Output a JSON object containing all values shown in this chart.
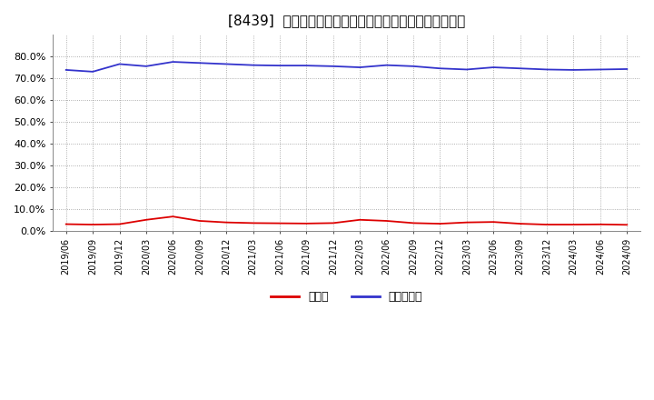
{
  "title": "[8439]  現預金、有利子負債の総資産に対する比率の推移",
  "x_labels": [
    "2019/06",
    "2019/09",
    "2019/12",
    "2020/03",
    "2020/06",
    "2020/09",
    "2020/12",
    "2021/03",
    "2021/06",
    "2021/09",
    "2021/12",
    "2022/03",
    "2022/06",
    "2022/09",
    "2022/12",
    "2023/03",
    "2023/06",
    "2023/09",
    "2023/12",
    "2024/03",
    "2024/06",
    "2024/09"
  ],
  "cash_values": [
    3.0,
    2.8,
    3.0,
    5.0,
    6.5,
    4.5,
    3.8,
    3.5,
    3.4,
    3.3,
    3.5,
    5.0,
    4.5,
    3.5,
    3.2,
    3.8,
    4.0,
    3.2,
    2.8,
    2.8,
    2.9,
    2.7
  ],
  "debt_values": [
    73.8,
    73.0,
    76.5,
    75.5,
    77.5,
    77.0,
    76.5,
    76.0,
    75.8,
    75.8,
    75.5,
    75.0,
    76.0,
    75.5,
    74.5,
    74.0,
    75.0,
    74.5,
    74.0,
    73.8,
    74.0,
    74.2
  ],
  "cash_color": "#dd0000",
  "debt_color": "#3333cc",
  "background_color": "#ffffff",
  "grid_color": "#999999",
  "title_fontsize": 11,
  "legend_cash": "現預金",
  "legend_debt": "有利子負債",
  "ylim": [
    0,
    90
  ],
  "yticks": [
    0.0,
    10.0,
    20.0,
    30.0,
    40.0,
    50.0,
    60.0,
    70.0,
    80.0
  ]
}
